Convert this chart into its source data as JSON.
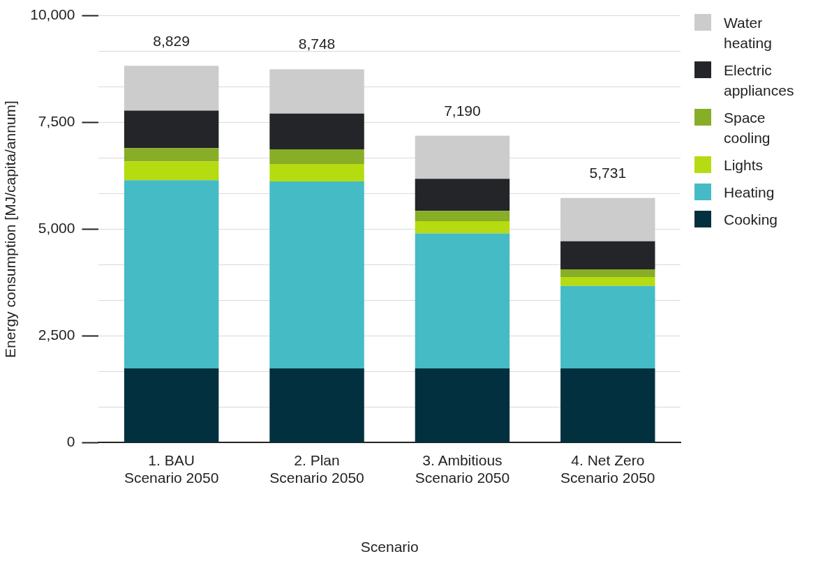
{
  "chart_data": {
    "type": "bar",
    "stacked": true,
    "xlabel": "Scenario",
    "ylabel": "Energy consumption [MJ/capita/annum]",
    "categories": [
      "1. BAU Scenario 2050",
      "2. Plan Scenario 2050",
      "3. Ambitious Scenario 2050",
      "4. Net Zero Scenario 2050"
    ],
    "series": [
      {
        "name": "Cooking",
        "color": "#03303f",
        "values": [
          1740,
          1740,
          1740,
          1740
        ]
      },
      {
        "name": "Heating",
        "color": "#45bbc5",
        "values": [
          4410,
          4380,
          3160,
          1930
        ]
      },
      {
        "name": "Lights",
        "color": "#b5dc10",
        "values": [
          440,
          410,
          290,
          210
        ]
      },
      {
        "name": "Space cooling",
        "color": "#88ad27",
        "values": [
          310,
          340,
          240,
          180
        ]
      },
      {
        "name": "Electric appliances",
        "color": "#232528",
        "values": [
          880,
          840,
          750,
          660
        ]
      },
      {
        "name": "Water heating",
        "color": "#cccccc",
        "values": [
          1049,
          1038,
          1010,
          1011
        ]
      }
    ],
    "totals": [
      "8,829",
      "8,748",
      "7,190",
      "5,731"
    ],
    "ylim": [
      0,
      10000
    ],
    "yticks": [
      0,
      {
        "value": 833.33,
        "label": null
      },
      {
        "value": 1666.67,
        "label": null
      },
      {
        "value": 2500,
        "label": "2,500"
      },
      {
        "value": 3333.33,
        "label": null
      },
      {
        "value": 4166.67,
        "label": null
      },
      {
        "value": 5000,
        "label": "5,000"
      },
      {
        "value": 5833.33,
        "label": null
      },
      {
        "value": 6666.67,
        "label": null
      },
      {
        "value": 7500,
        "label": "7,500"
      },
      {
        "value": 8333.33,
        "label": null
      },
      {
        "value": 9166.67,
        "label": null
      },
      {
        "value": 10000,
        "label": "10,000"
      }
    ],
    "grid": "y",
    "legend": "right"
  }
}
